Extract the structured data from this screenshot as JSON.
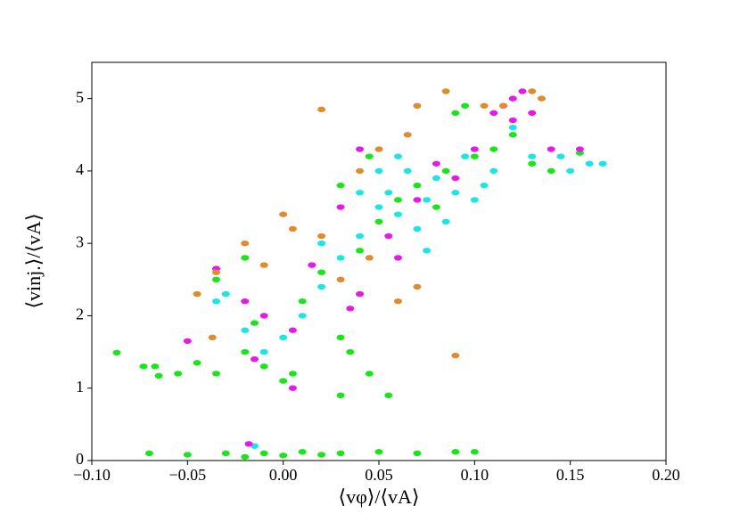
{
  "chart_data": {
    "type": "scatter",
    "x_label": "⟨vφ⟩/⟨vA⟩",
    "y_label": "⟨vinj.⟩/⟨vA⟩",
    "xlim": [
      -0.1,
      0.2
    ],
    "ylim": [
      0,
      5.5
    ],
    "xticks": [
      {
        "value": -0.1,
        "label": "−0.10"
      },
      {
        "value": -0.05,
        "label": "−0.05"
      },
      {
        "value": 0,
        "label": "0.00"
      },
      {
        "value": 0.05,
        "label": "0.05"
      },
      {
        "value": 0.1,
        "label": "0.10"
      },
      {
        "value": 0.15,
        "label": "0.15"
      },
      {
        "value": 0.2,
        "label": "0.20"
      }
    ],
    "yticks": [
      0,
      1,
      2,
      3,
      4,
      5
    ],
    "grid": false,
    "series": [
      {
        "color": "#19e619",
        "x": [
          -0.087,
          -0.073,
          -0.067,
          -0.065,
          -0.055,
          -0.045,
          -0.035,
          -0.02,
          -0.01,
          0,
          0.005,
          -0.015,
          0.01,
          0.02,
          0.03,
          0.035,
          0.04,
          0.05,
          0.06,
          0.07,
          0.08,
          0.085,
          0.1,
          0.11,
          0.12,
          0.13,
          0.14,
          0.155,
          0.045,
          0.09,
          0.095,
          0.03,
          -0.02,
          -0.035,
          0.055,
          0.03,
          0.045,
          -0.07,
          -0.05,
          -0.03,
          -0.01,
          0.01,
          0.03,
          0.05,
          0.07,
          0.09,
          0.1,
          -0.02,
          0,
          0.02
        ],
        "values": [
          1.49,
          1.3,
          1.3,
          1.17,
          1.2,
          1.35,
          1.2,
          1.5,
          1.3,
          1.1,
          1.2,
          1.9,
          2.2,
          2.6,
          1.7,
          1.5,
          2.9,
          3.3,
          3.6,
          3.8,
          3.5,
          4.0,
          4.2,
          4.3,
          4.5,
          4.1,
          4.0,
          4.25,
          4.2,
          4.8,
          4.9,
          3.8,
          2.8,
          2.5,
          0.9,
          0.9,
          1.2,
          0.1,
          0.08,
          0.1,
          0.1,
          0.12,
          0.1,
          0.12,
          0.1,
          0.12,
          0.12,
          0.05,
          0.07,
          0.08
        ]
      },
      {
        "color": "#1ae6e6",
        "x": [
          -0.02,
          -0.01,
          0,
          0.01,
          -0.03,
          0.02,
          0.03,
          0.04,
          0.05,
          0.055,
          0.06,
          0.065,
          0.07,
          0.075,
          0.08,
          0.085,
          0.09,
          0.095,
          0.1,
          0.105,
          0.11,
          0.12,
          0.13,
          0.145,
          0.16,
          0.167,
          0.15,
          0.05,
          0.06,
          0.04,
          0.02,
          -0.035,
          0.075,
          -0.015
        ],
        "values": [
          1.8,
          1.5,
          1.7,
          2.0,
          2.3,
          2.4,
          2.8,
          3.1,
          3.5,
          3.7,
          3.4,
          4.0,
          3.2,
          3.6,
          3.9,
          3.3,
          3.7,
          4.2,
          3.6,
          3.8,
          4.0,
          4.6,
          4.2,
          4.2,
          4.1,
          4.1,
          4.0,
          4.0,
          4.2,
          3.7,
          3.0,
          2.2,
          2.9,
          0.2
        ]
      },
      {
        "color": "#e619e6",
        "x": [
          -0.035,
          -0.02,
          -0.01,
          0.005,
          0.015,
          0.03,
          0.04,
          0.055,
          0.06,
          0.07,
          0.08,
          0.1,
          0.11,
          0.115,
          0.12,
          0.125,
          0.12,
          0.13,
          0.14,
          0.155,
          0.035,
          -0.015,
          -0.05,
          0.04,
          0.09,
          -0.018,
          0.005
        ],
        "values": [
          2.65,
          2.2,
          2.0,
          1.8,
          2.7,
          3.5,
          2.3,
          3.1,
          2.8,
          3.6,
          4.1,
          4.3,
          4.8,
          4.9,
          5.0,
          5.1,
          4.7,
          4.8,
          4.3,
          4.3,
          2.1,
          1.4,
          1.65,
          4.3,
          3.9,
          0.23,
          1.0
        ]
      },
      {
        "color": "#e08c2e",
        "x": [
          -0.045,
          -0.037,
          -0.035,
          -0.02,
          0,
          0.005,
          0.02,
          0.02,
          0.04,
          0.05,
          0.065,
          0.07,
          0.085,
          0.105,
          0.115,
          0.13,
          0.135,
          0.09,
          0.06,
          0.07,
          0.03,
          0.045,
          -0.01
        ],
        "values": [
          2.3,
          1.7,
          2.6,
          3.0,
          3.4,
          3.2,
          3.1,
          4.85,
          4.0,
          4.3,
          4.5,
          4.9,
          5.1,
          4.9,
          4.9,
          5.1,
          5.0,
          1.45,
          2.2,
          2.4,
          2.5,
          2.8,
          2.7
        ]
      }
    ]
  }
}
